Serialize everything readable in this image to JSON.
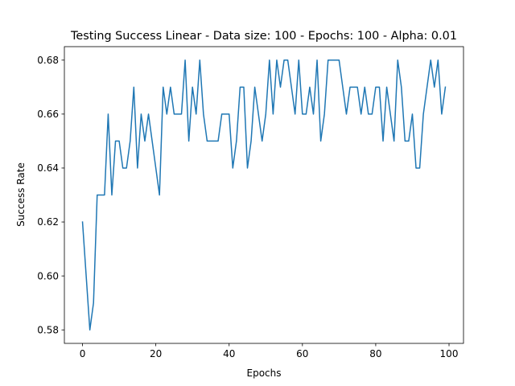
{
  "chart_data": {
    "type": "line",
    "title": "Testing Success Linear - Data size: 100 - Epochs: 100 - Alpha: 0.01",
    "xlabel": "Epochs",
    "ylabel": "Success Rate",
    "xlim": [
      -4.95,
      103.95
    ],
    "ylim": [
      0.575,
      0.685
    ],
    "x_ticks": [
      0,
      20,
      40,
      60,
      80,
      100
    ],
    "x_tick_labels": [
      "0",
      "20",
      "40",
      "60",
      "80",
      "100"
    ],
    "y_ticks": [
      0.58,
      0.6,
      0.62,
      0.64,
      0.66,
      0.68
    ],
    "y_tick_labels": [
      "0.58",
      "0.60",
      "0.62",
      "0.64",
      "0.66",
      "0.68"
    ],
    "grid": false,
    "legend": "none",
    "line_color": "#1f77b4",
    "series": [
      {
        "x": [
          0,
          1,
          2,
          3,
          4,
          5,
          6,
          7,
          8,
          9,
          10,
          11,
          12,
          13,
          14,
          15,
          16,
          17,
          18,
          19,
          20,
          21,
          22,
          23,
          24,
          25,
          26,
          27,
          28,
          29,
          30,
          31,
          32,
          33,
          34,
          35,
          36,
          37,
          38,
          39,
          40,
          41,
          42,
          43,
          44,
          45,
          46,
          47,
          48,
          49,
          50,
          51,
          52,
          53,
          54,
          55,
          56,
          57,
          58,
          59,
          60,
          61,
          62,
          63,
          64,
          65,
          66,
          67,
          68,
          69,
          70,
          71,
          72,
          73,
          74,
          75,
          76,
          77,
          78,
          79,
          80,
          81,
          82,
          83,
          84,
          85,
          86,
          87,
          88,
          89,
          90,
          91,
          92,
          93,
          94,
          95,
          96,
          97,
          98,
          99
        ],
        "values": [
          0.62,
          0.6,
          0.58,
          0.59,
          0.63,
          0.63,
          0.63,
          0.66,
          0.63,
          0.65,
          0.65,
          0.64,
          0.64,
          0.65,
          0.67,
          0.64,
          0.66,
          0.65,
          0.66,
          0.65,
          0.64,
          0.63,
          0.67,
          0.66,
          0.67,
          0.66,
          0.66,
          0.66,
          0.68,
          0.65,
          0.67,
          0.66,
          0.68,
          0.66,
          0.65,
          0.65,
          0.65,
          0.65,
          0.66,
          0.66,
          0.66,
          0.64,
          0.65,
          0.67,
          0.67,
          0.64,
          0.65,
          0.67,
          0.66,
          0.65,
          0.66,
          0.68,
          0.66,
          0.68,
          0.67,
          0.68,
          0.68,
          0.67,
          0.66,
          0.68,
          0.66,
          0.66,
          0.67,
          0.66,
          0.68,
          0.65,
          0.66,
          0.68,
          0.68,
          0.68,
          0.68,
          0.67,
          0.66,
          0.67,
          0.67,
          0.67,
          0.66,
          0.67,
          0.66,
          0.66,
          0.67,
          0.67,
          0.65,
          0.67,
          0.66,
          0.65,
          0.68,
          0.67,
          0.65,
          0.65,
          0.66,
          0.64,
          0.64,
          0.66,
          0.67,
          0.68,
          0.67,
          0.68,
          0.66,
          0.67
        ]
      }
    ]
  }
}
